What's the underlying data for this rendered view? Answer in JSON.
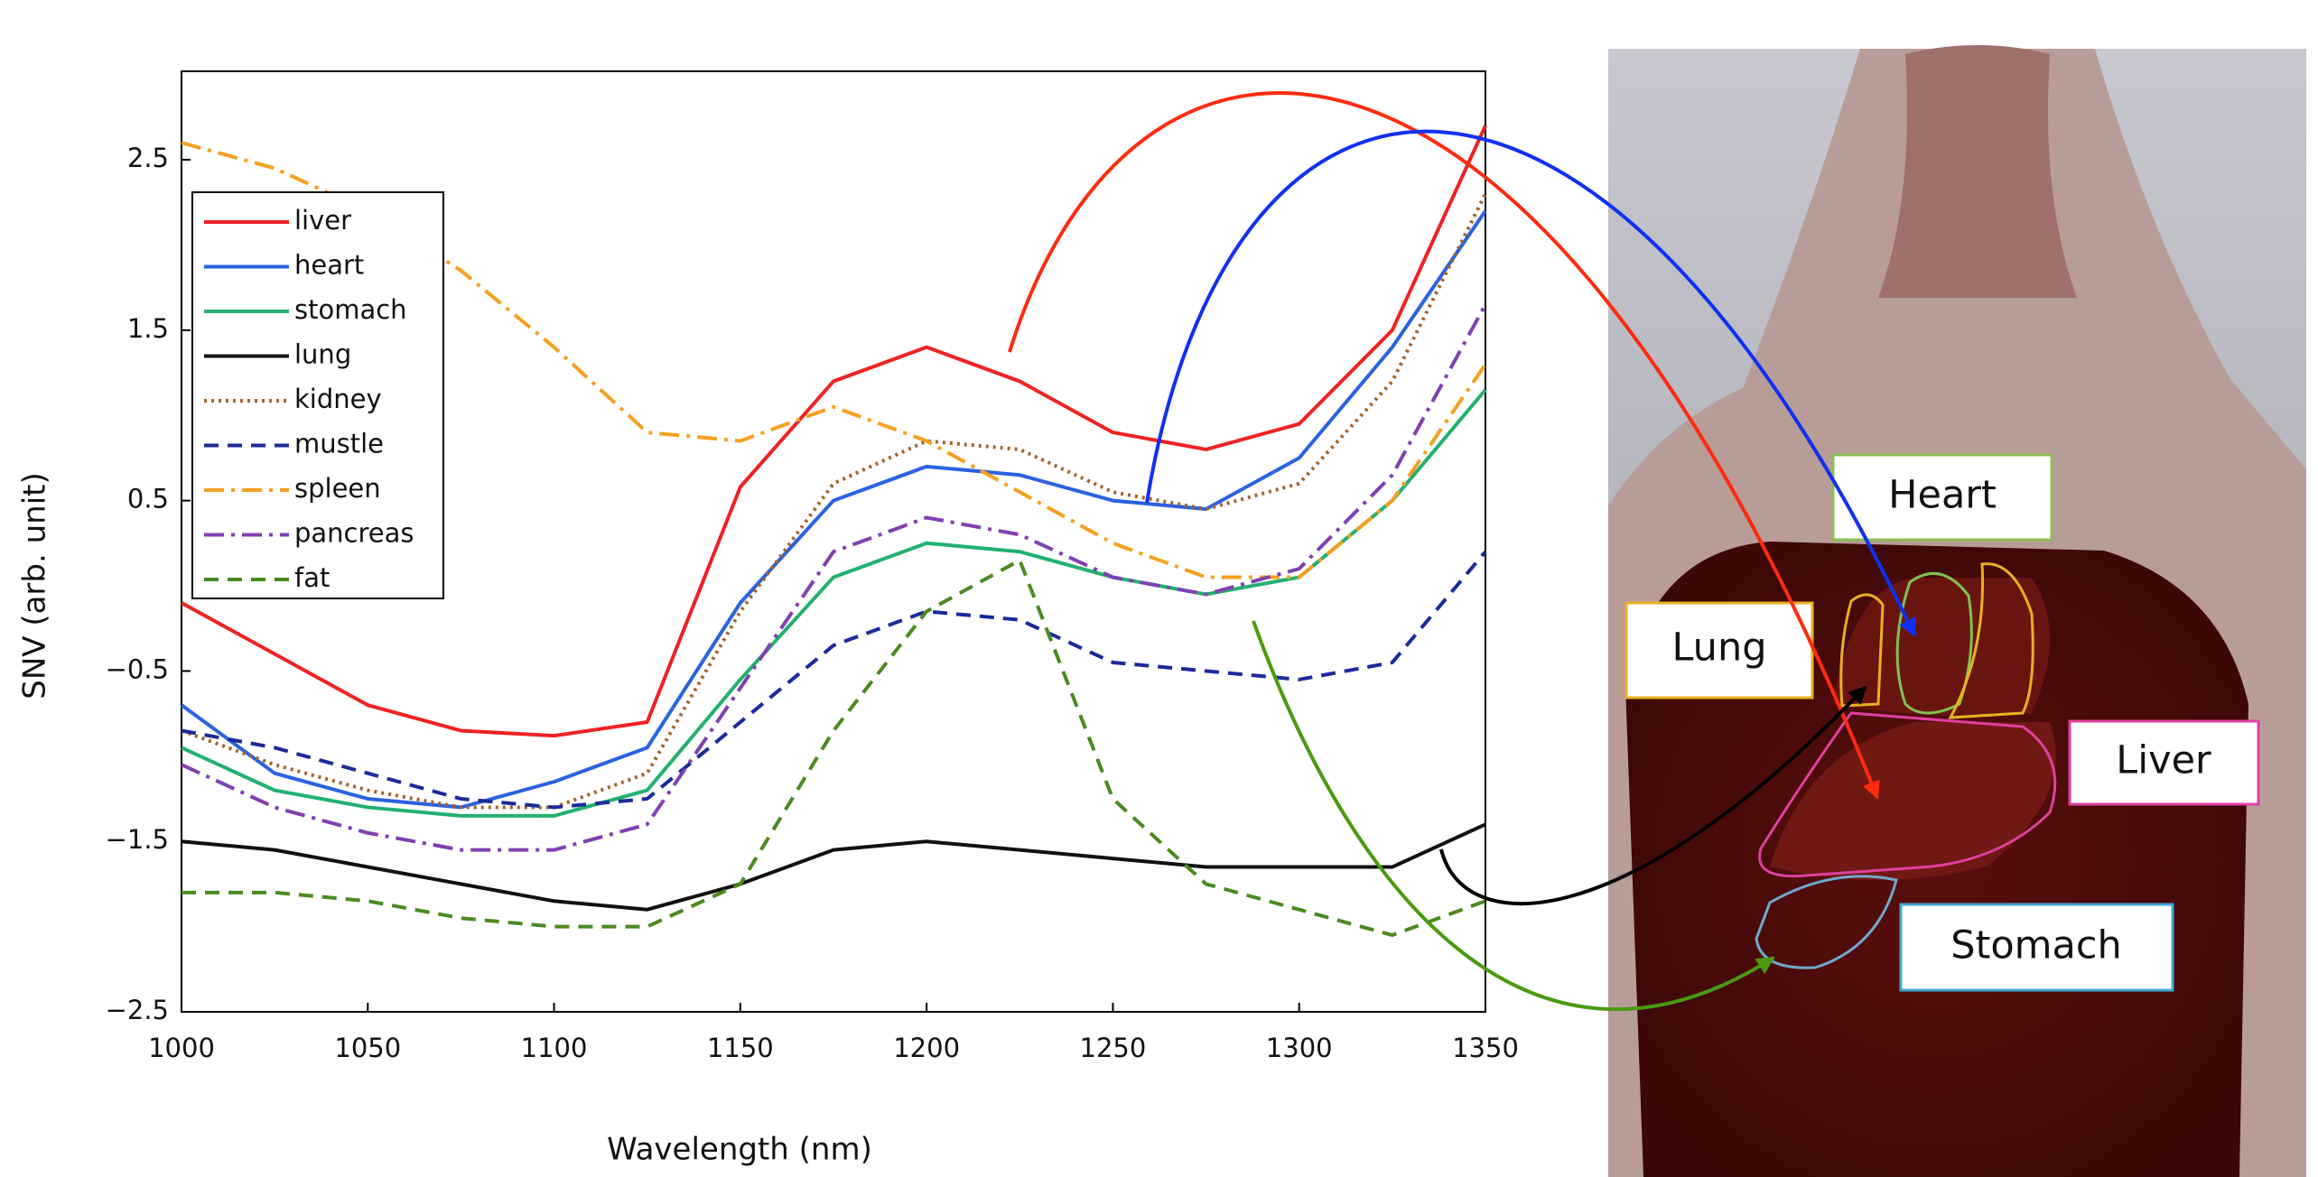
{
  "chart_data": {
    "type": "line",
    "xlabel": "Wavelength (nm)",
    "ylabel": "SNV (arb. unit)",
    "x": [
      1000,
      1025,
      1050,
      1075,
      1100,
      1125,
      1150,
      1175,
      1200,
      1225,
      1250,
      1275,
      1300,
      1325,
      1350
    ],
    "xlim": [
      1000,
      1350
    ],
    "xticks": [
      1000,
      1050,
      1100,
      1150,
      1200,
      1250,
      1300,
      1350
    ],
    "ylim": [
      -2.5,
      2.5
    ],
    "yticks": [
      {
        "value": -2.5,
        "label": "−2.5"
      },
      {
        "value": -1.5,
        "label": "−1.5"
      },
      {
        "value": -0.5,
        "label": "−0.5"
      },
      0.5,
      1.5,
      2.5
    ],
    "legend": "top-left",
    "series": [
      {
        "name": "liver",
        "color": "#ee2222",
        "dash": "solid",
        "values": [
          -0.1,
          -0.4,
          -0.7,
          -0.85,
          -0.88,
          -0.8,
          0.58,
          1.2,
          1.4,
          1.2,
          0.9,
          0.8,
          0.95,
          1.5,
          2.7
        ]
      },
      {
        "name": "heart",
        "color": "#2a62e0",
        "dash": "solid",
        "values": [
          -0.7,
          -1.1,
          -1.25,
          -1.3,
          -1.15,
          -0.95,
          -0.1,
          0.5,
          0.7,
          0.65,
          0.5,
          0.45,
          0.75,
          1.4,
          2.2
        ]
      },
      {
        "name": "stomach",
        "color": "#22b070",
        "dash": "solid",
        "values": [
          -0.95,
          -1.2,
          -1.3,
          -1.35,
          -1.35,
          -1.2,
          -0.55,
          0.05,
          0.25,
          0.2,
          0.05,
          -0.05,
          0.05,
          0.5,
          1.15
        ]
      },
      {
        "name": "lung",
        "color": "#111111",
        "dash": "solid",
        "values": [
          -1.5,
          -1.55,
          -1.65,
          -1.75,
          -1.85,
          -1.9,
          -1.75,
          -1.55,
          -1.5,
          -1.55,
          -1.6,
          -1.65,
          -1.65,
          -1.65,
          -1.4
        ]
      },
      {
        "name": "kidney",
        "color": "#a0642a",
        "dash": "dotted",
        "values": [
          -0.85,
          -1.05,
          -1.2,
          -1.3,
          -1.3,
          -1.1,
          -0.15,
          0.6,
          0.85,
          0.8,
          0.55,
          0.45,
          0.6,
          1.2,
          2.3
        ]
      },
      {
        "name": "mustle",
        "color": "#1a2a9a",
        "dash": "dashed",
        "values": [
          -0.85,
          -0.95,
          -1.1,
          -1.25,
          -1.3,
          -1.25,
          -0.8,
          -0.35,
          -0.15,
          -0.2,
          -0.45,
          -0.5,
          -0.55,
          -0.45,
          0.2
        ]
      },
      {
        "name": "spleen",
        "color": "#f5a020",
        "dash": "dashdot",
        "values": [
          2.6,
          2.45,
          2.2,
          1.85,
          1.4,
          0.9,
          0.85,
          1.05,
          0.85,
          0.55,
          0.25,
          0.05,
          0.05,
          0.5,
          1.3
        ]
      },
      {
        "name": "pancreas",
        "color": "#8040b0",
        "dash": "dashdot",
        "values": [
          -1.05,
          -1.3,
          -1.45,
          -1.55,
          -1.55,
          -1.4,
          -0.6,
          0.2,
          0.4,
          0.3,
          0.05,
          -0.05,
          0.1,
          0.65,
          1.65
        ]
      },
      {
        "name": "fat",
        "color": "#4a8a20",
        "dash": "dashed",
        "values": [
          -1.8,
          -1.8,
          -1.85,
          -1.95,
          -2.0,
          -2.0,
          -1.75,
          -0.85,
          -0.15,
          0.15,
          -1.25,
          -1.75,
          -1.9,
          -2.05,
          -1.85
        ]
      }
    ]
  },
  "photo_labels": [
    "Heart",
    "Lung",
    "Liver",
    "Stomach"
  ]
}
